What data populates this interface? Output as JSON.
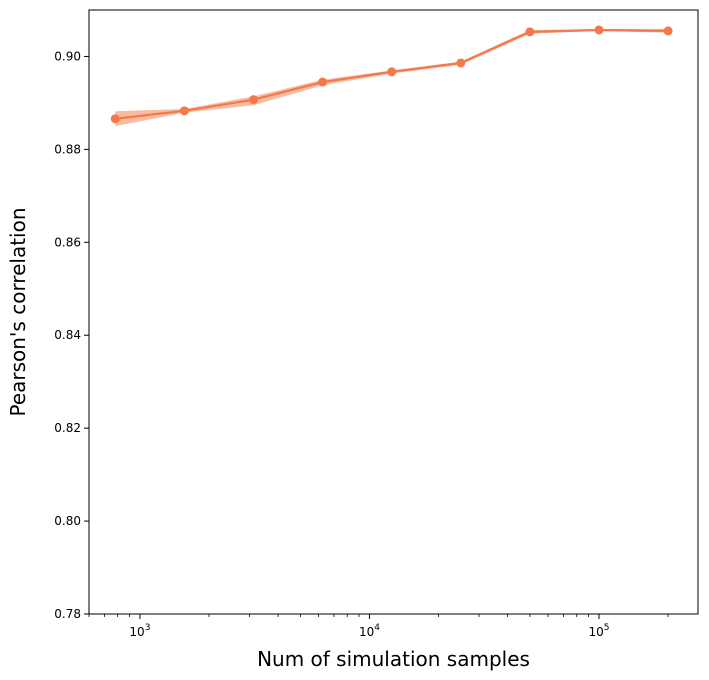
{
  "chart_data": {
    "type": "line",
    "title": "",
    "xlabel": "Num of simulation samples",
    "ylabel": "Pearson's correlation",
    "x_scale": "log",
    "xlim": [
      600,
      270000
    ],
    "ylim": [
      0.78,
      0.91
    ],
    "grid": false,
    "x_ticks": [
      {
        "value": 1000,
        "base": "10",
        "exp": "3"
      },
      {
        "value": 10000,
        "base": "10",
        "exp": "4"
      },
      {
        "value": 100000,
        "base": "10",
        "exp": "5"
      }
    ],
    "y_ticks": [
      {
        "value": 0.78,
        "label": "0.78"
      },
      {
        "value": 0.8,
        "label": "0.80"
      },
      {
        "value": 0.82,
        "label": "0.82"
      },
      {
        "value": 0.84,
        "label": "0.84"
      },
      {
        "value": 0.86,
        "label": "0.86"
      },
      {
        "value": 0.88,
        "label": "0.88"
      },
      {
        "value": 0.9,
        "label": "0.90"
      }
    ],
    "series": [
      {
        "color": "#f4794a",
        "band_color": "#f4a582",
        "x": [
          781,
          1562,
          3125,
          6250,
          12500,
          25000,
          50000,
          100000,
          200000
        ],
        "y": [
          0.8866,
          0.8883,
          0.8907,
          0.8945,
          0.8967,
          0.8986,
          0.9053,
          0.9057,
          0.9055
        ],
        "y_low": [
          0.885,
          0.8879,
          0.8895,
          0.8938,
          0.8963,
          0.8982,
          0.9049,
          0.9055,
          0.9051
        ],
        "y_high": [
          0.8882,
          0.8887,
          0.8914,
          0.895,
          0.897,
          0.8989,
          0.9057,
          0.9059,
          0.9059
        ]
      }
    ]
  }
}
